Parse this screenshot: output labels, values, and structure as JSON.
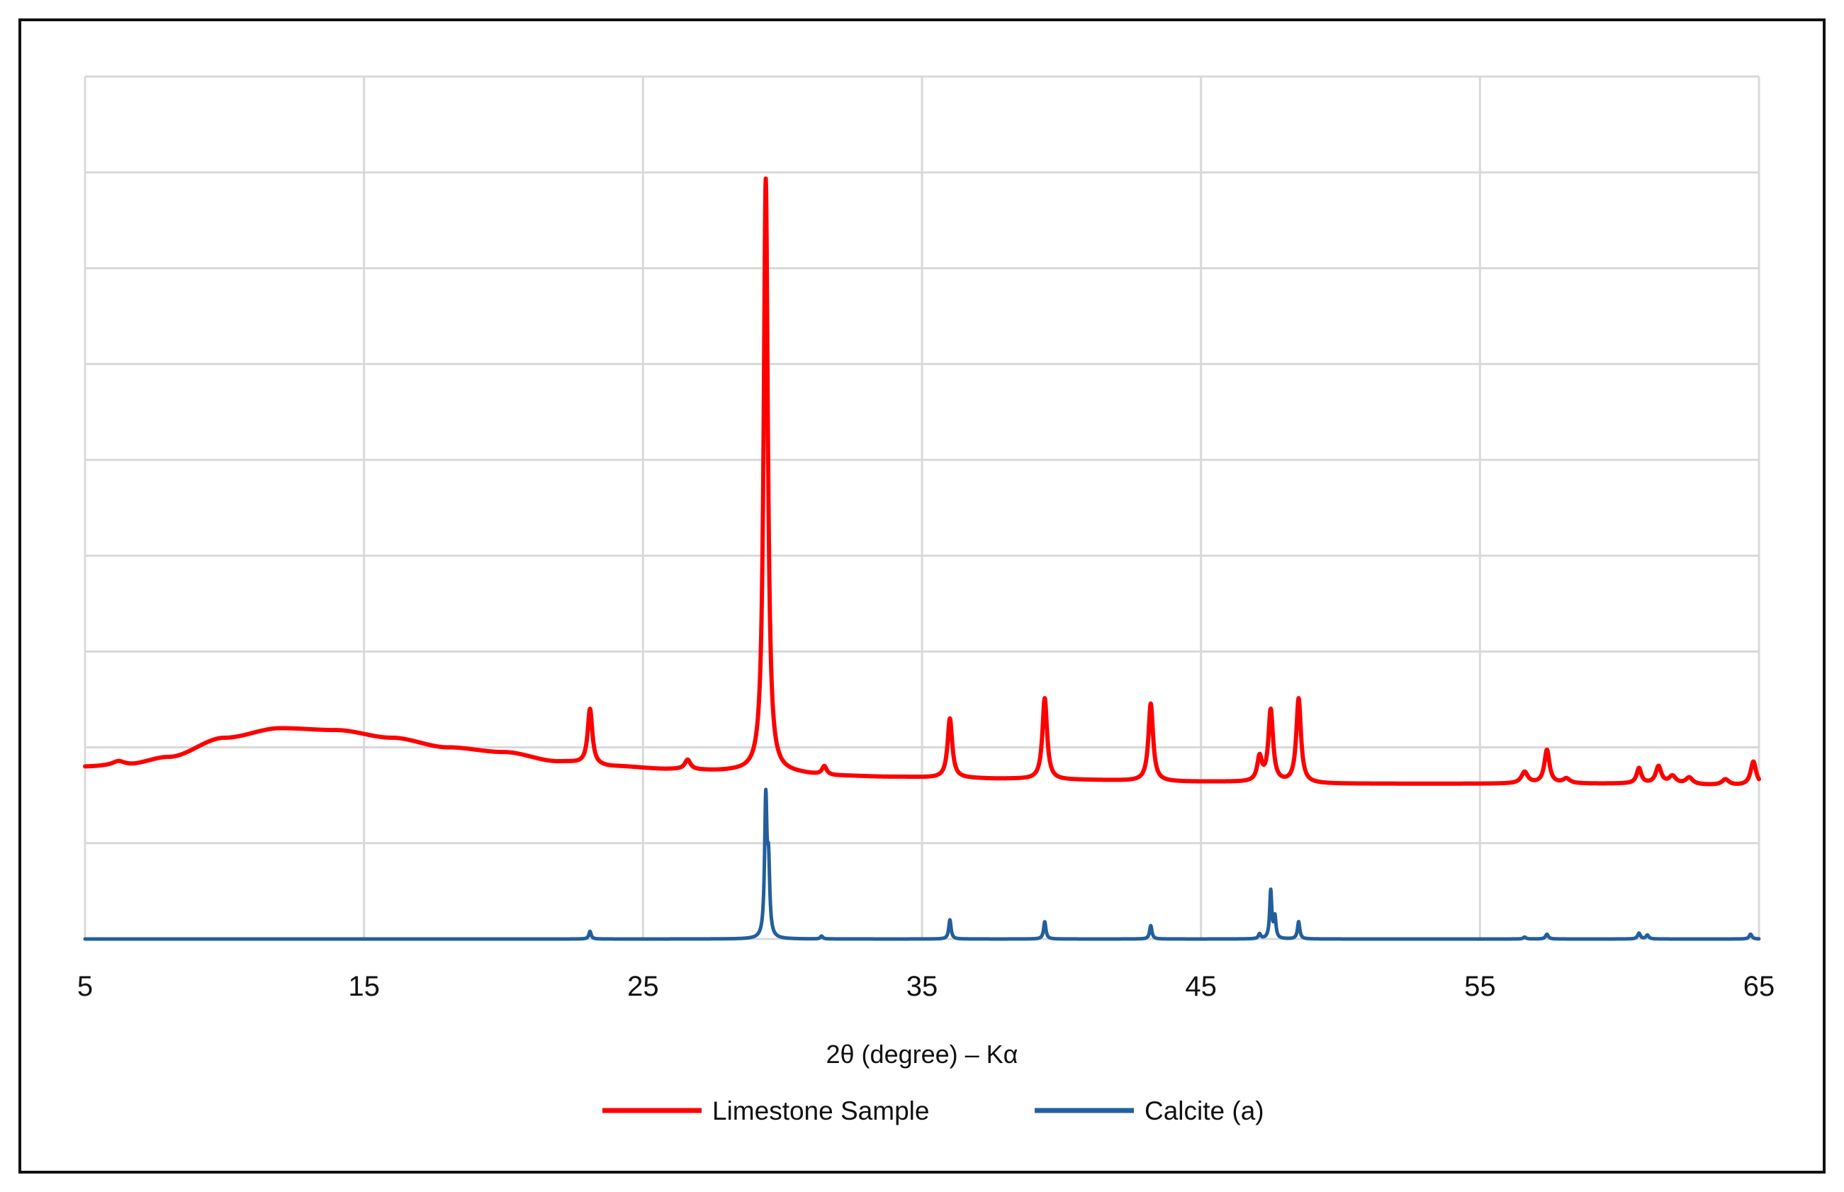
{
  "chart_data": {
    "type": "line",
    "title": "",
    "xlabel": "2θ (degree) – Kα",
    "ylabel": "",
    "xlim": [
      5,
      65
    ],
    "ylim": [
      0,
      9
    ],
    "x_ticks": [
      "5",
      "15",
      "25",
      "35",
      "45",
      "55",
      "65"
    ],
    "y_gridlines": [
      0,
      1,
      2,
      3,
      4,
      5,
      6,
      7,
      8,
      9
    ],
    "y_tick_labels_shown": false,
    "grid": true,
    "legend_position": "bottom",
    "series": [
      {
        "name": "Limestone Sample",
        "color": "#ff0000",
        "baseline": [
          [
            5,
            1.8
          ],
          [
            6.5,
            1.82
          ],
          [
            8,
            1.9
          ],
          [
            10,
            2.1
          ],
          [
            12,
            2.2
          ],
          [
            14,
            2.18
          ],
          [
            16,
            2.1
          ],
          [
            18,
            2.0
          ],
          [
            20,
            1.95
          ],
          [
            22,
            1.85
          ],
          [
            24,
            1.8
          ],
          [
            26,
            1.77
          ],
          [
            28,
            1.75
          ],
          [
            30,
            1.73
          ],
          [
            32,
            1.7
          ],
          [
            34,
            1.69
          ],
          [
            36,
            1.68
          ],
          [
            38,
            1.67
          ],
          [
            40,
            1.66
          ],
          [
            45,
            1.64
          ],
          [
            50,
            1.62
          ],
          [
            55,
            1.62
          ],
          [
            60,
            1.62
          ],
          [
            65,
            1.6
          ]
        ],
        "peaks": [
          {
            "x": 6.2,
            "height": 0.04,
            "width": 0.25
          },
          {
            "x": 23.1,
            "height": 0.58,
            "width": 0.1
          },
          {
            "x": 26.6,
            "height": 0.1,
            "width": 0.12
          },
          {
            "x": 29.4,
            "height": 6.2,
            "width": 0.09
          },
          {
            "x": 31.5,
            "height": 0.09,
            "width": 0.1
          },
          {
            "x": 36.0,
            "height": 0.62,
            "width": 0.1
          },
          {
            "x": 39.4,
            "height": 0.85,
            "width": 0.1
          },
          {
            "x": 43.2,
            "height": 0.81,
            "width": 0.1
          },
          {
            "x": 47.1,
            "height": 0.25,
            "width": 0.1
          },
          {
            "x": 47.5,
            "height": 0.75,
            "width": 0.1
          },
          {
            "x": 48.5,
            "height": 0.88,
            "width": 0.1
          },
          {
            "x": 56.6,
            "height": 0.12,
            "width": 0.14
          },
          {
            "x": 57.4,
            "height": 0.35,
            "width": 0.11
          },
          {
            "x": 58.1,
            "height": 0.05,
            "width": 0.15
          },
          {
            "x": 60.7,
            "height": 0.16,
            "width": 0.1
          },
          {
            "x": 61.4,
            "height": 0.18,
            "width": 0.12
          },
          {
            "x": 61.9,
            "height": 0.08,
            "width": 0.15
          },
          {
            "x": 62.5,
            "height": 0.07,
            "width": 0.15
          },
          {
            "x": 63.8,
            "height": 0.06,
            "width": 0.15
          },
          {
            "x": 64.8,
            "height": 0.25,
            "width": 0.12
          }
        ]
      },
      {
        "name": "Calcite (a)",
        "color": "#225f9c",
        "baseline": [
          [
            5,
            0.0
          ],
          [
            65,
            0.0
          ]
        ],
        "peaks": [
          {
            "x": 23.1,
            "height": 0.08,
            "width": 0.05
          },
          {
            "x": 29.4,
            "height": 1.42,
            "width": 0.05
          },
          {
            "x": 29.5,
            "height": 0.7,
            "width": 0.05
          },
          {
            "x": 31.4,
            "height": 0.03,
            "width": 0.05
          },
          {
            "x": 36.0,
            "height": 0.2,
            "width": 0.05
          },
          {
            "x": 39.4,
            "height": 0.18,
            "width": 0.05
          },
          {
            "x": 43.2,
            "height": 0.14,
            "width": 0.05
          },
          {
            "x": 47.1,
            "height": 0.05,
            "width": 0.05
          },
          {
            "x": 47.5,
            "height": 0.5,
            "width": 0.045
          },
          {
            "x": 47.65,
            "height": 0.22,
            "width": 0.045
          },
          {
            "x": 48.5,
            "height": 0.18,
            "width": 0.05
          },
          {
            "x": 56.6,
            "height": 0.02,
            "width": 0.06
          },
          {
            "x": 57.4,
            "height": 0.05,
            "width": 0.06
          },
          {
            "x": 60.7,
            "height": 0.06,
            "width": 0.06
          },
          {
            "x": 61.0,
            "height": 0.04,
            "width": 0.06
          },
          {
            "x": 64.7,
            "height": 0.05,
            "width": 0.06
          }
        ]
      }
    ]
  }
}
